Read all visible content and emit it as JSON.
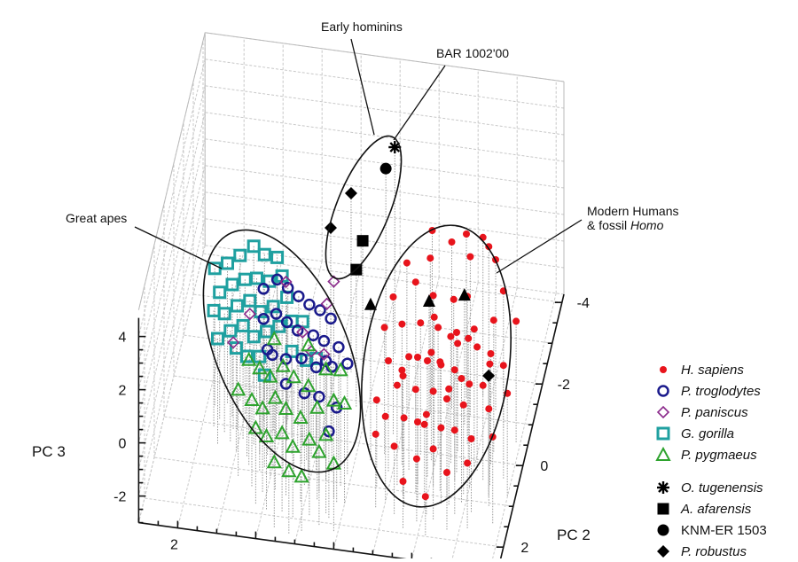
{
  "chart_data": {
    "type": "scatter",
    "projection": "3d",
    "axes": {
      "x": {
        "label": "",
        "range": [
          -6.2,
          3
        ],
        "ticks": [
          2
        ]
      },
      "y": {
        "label": "PC 2",
        "range": [
          -4.2,
          2.6
        ],
        "ticks": [
          -4,
          -2,
          0,
          2
        ]
      },
      "z": {
        "label": "PC 3",
        "range": [
          -3,
          5
        ],
        "ticks": [
          4,
          2,
          0,
          -2
        ]
      }
    },
    "grid": true,
    "legend_placement": "right",
    "drop_lines": true,
    "annotations": {
      "early_hominins": "Early hominins",
      "bar": "BAR 1002'00",
      "great_apes": "Great apes",
      "modern_humans_line1": "Modern Humans",
      "modern_humans_line2": "& fossil ",
      "modern_humans_italic": "Homo"
    },
    "series": [
      {
        "name": "H. sapiens",
        "marker": "filled-circle",
        "color": "#e8141c",
        "points": [
          [
            -4.1,
            -1.1,
            3.3
          ],
          [
            -3.5,
            -1.5,
            3.0
          ],
          [
            -4.6,
            -1.0,
            3.0
          ],
          [
            -3.0,
            -0.9,
            2.6
          ],
          [
            -5.2,
            -1.2,
            2.7
          ],
          [
            -2.8,
            -0.3,
            2.2
          ],
          [
            -3.3,
            -0.6,
            2.4
          ],
          [
            -3.8,
            -0.4,
            2.3
          ],
          [
            -4.3,
            -0.5,
            2.1
          ],
          [
            -5.5,
            -0.8,
            2.2
          ],
          [
            -5.9,
            -0.5,
            1.6
          ],
          [
            -2.7,
            0.2,
            1.8
          ],
          [
            -3.1,
            0.0,
            1.7
          ],
          [
            -3.6,
            0.1,
            2.0
          ],
          [
            -4.0,
            -0.1,
            1.6
          ],
          [
            -4.4,
            0.2,
            1.8
          ],
          [
            -4.8,
            0.0,
            1.5
          ],
          [
            -5.1,
            0.3,
            1.7
          ],
          [
            -5.4,
            0.1,
            1.2
          ],
          [
            -5.8,
            0.4,
            1.3
          ],
          [
            -2.9,
            0.6,
            1.2
          ],
          [
            -3.4,
            0.5,
            1.3
          ],
          [
            -3.9,
            0.6,
            1.4
          ],
          [
            -4.2,
            0.4,
            1.0
          ],
          [
            -4.6,
            0.6,
            1.2
          ],
          [
            -5.0,
            0.7,
            0.9
          ],
          [
            -5.3,
            0.5,
            0.6
          ],
          [
            -3.2,
            0.9,
            0.8
          ],
          [
            -3.7,
            1.0,
            0.9
          ],
          [
            -4.1,
            0.8,
            0.6
          ],
          [
            -4.5,
            1.0,
            0.7
          ],
          [
            -4.9,
            0.9,
            0.4
          ],
          [
            -5.6,
            1.1,
            0.7
          ],
          [
            -2.7,
            1.0,
            0.3
          ],
          [
            -3.0,
            1.3,
            0.2
          ],
          [
            -3.5,
            1.4,
            0.4
          ],
          [
            -4.0,
            1.3,
            0.1
          ],
          [
            -4.4,
            1.2,
            -0.1
          ],
          [
            -4.8,
            1.4,
            0.2
          ],
          [
            -5.2,
            1.3,
            -0.2
          ],
          [
            -3.3,
            1.6,
            -0.4
          ],
          [
            -3.9,
            1.7,
            -0.6
          ],
          [
            -4.3,
            1.6,
            -0.3
          ],
          [
            -4.7,
            1.8,
            -0.8
          ],
          [
            -3.6,
            1.9,
            -1.2
          ],
          [
            -4.2,
            2.0,
            -1.5
          ],
          [
            -4.6,
            1.2,
            1.4
          ],
          [
            -4.0,
            0.3,
            2.6
          ],
          [
            -4.7,
            -0.3,
            2.6
          ],
          [
            -3.6,
            -0.9,
            2.9
          ],
          [
            -5.0,
            -1.3,
            3.0
          ],
          [
            -4.4,
            -1.4,
            3.2
          ],
          [
            -4.8,
            -1.5,
            3.0
          ],
          [
            -3.7,
            0.8,
            1.8
          ],
          [
            -4.3,
            0.9,
            1.9
          ],
          [
            -5.0,
            0.2,
            2.2
          ],
          [
            -5.5,
            0.6,
            1.6
          ],
          [
            -6.0,
            0.8,
            0.9
          ],
          [
            -5.8,
            1.5,
            0.3
          ],
          [
            -5.2,
            1.7,
            -0.5
          ],
          [
            -3.9,
            0.2,
            1.1
          ],
          [
            -4.5,
            -0.1,
            1.1
          ],
          [
            -3.2,
            0.4,
            0.6
          ],
          [
            -2.8,
            1.5,
            -0.2
          ],
          [
            -4.9,
            1.1,
            1.7
          ],
          [
            -4.1,
            1.5,
            0.8
          ],
          [
            -3.4,
            1.1,
            1.5
          ],
          [
            -5.4,
            -0.2,
            2.0
          ],
          [
            -4.6,
            0.4,
            2.3
          ],
          [
            -3.8,
            1.2,
            0.0
          ]
        ]
      },
      {
        "name": "G. gorilla",
        "marker": "open-square",
        "color": "#1fa0a0",
        "points": [
          [
            1.8,
            -0.4,
            2.2
          ],
          [
            1.5,
            -0.5,
            2.3
          ],
          [
            1.2,
            -0.6,
            2.5
          ],
          [
            0.9,
            -0.8,
            2.6
          ],
          [
            0.6,
            -0.7,
            2.5
          ],
          [
            0.3,
            -0.8,
            2.3
          ],
          [
            1.6,
            -0.1,
            1.8
          ],
          [
            1.3,
            -0.2,
            2.0
          ],
          [
            1.0,
            -0.3,
            2.1
          ],
          [
            0.7,
            -0.3,
            2.2
          ],
          [
            0.4,
            -0.4,
            2.0
          ],
          [
            0.1,
            -0.5,
            2.1
          ],
          [
            1.4,
            0.2,
            1.5
          ],
          [
            1.1,
            0.1,
            1.7
          ],
          [
            0.8,
            0.0,
            1.8
          ],
          [
            0.5,
            0.1,
            1.6
          ],
          [
            0.2,
            0.0,
            1.7
          ],
          [
            -0.1,
            -0.2,
            1.8
          ],
          [
            1.2,
            0.4,
            1.2
          ],
          [
            0.9,
            0.3,
            1.3
          ],
          [
            0.6,
            0.4,
            1.1
          ],
          [
            0.3,
            0.3,
            1.2
          ],
          [
            0.0,
            0.2,
            1.3
          ],
          [
            -0.3,
            0.1,
            1.4
          ],
          [
            1.0,
            0.6,
            0.9
          ],
          [
            0.7,
            0.7,
            0.8
          ],
          [
            0.4,
            0.6,
            0.7
          ],
          [
            -0.4,
            0.5,
            0.9
          ],
          [
            -0.8,
            0.6,
            0.8
          ],
          [
            1.7,
            0.1,
            1.4
          ],
          [
            1.5,
            0.5,
            1.0
          ],
          [
            0.2,
            0.9,
            0.5
          ],
          [
            -0.6,
            0.2,
            1.6
          ],
          [
            -1.0,
            0.4,
            0.6
          ]
        ]
      },
      {
        "name": "P. troglodytes",
        "marker": "open-circle",
        "color": "#1a1a8c",
        "points": [
          [
            0.5,
            -0.2,
            2.0
          ],
          [
            0.2,
            -0.4,
            2.1
          ],
          [
            -0.1,
            -0.3,
            2.0
          ],
          [
            -0.4,
            -0.2,
            1.9
          ],
          [
            -0.7,
            -0.1,
            1.8
          ],
          [
            -1.0,
            0.0,
            1.8
          ],
          [
            -1.3,
            0.1,
            1.7
          ],
          [
            0.4,
            0.2,
            1.5
          ],
          [
            0.1,
            0.1,
            1.6
          ],
          [
            -0.2,
            0.2,
            1.5
          ],
          [
            -0.5,
            0.3,
            1.4
          ],
          [
            -0.9,
            0.3,
            1.3
          ],
          [
            -1.2,
            0.4,
            1.3
          ],
          [
            -1.6,
            0.5,
            1.3
          ],
          [
            0.2,
            0.6,
            1.0
          ],
          [
            -0.3,
            0.7,
            0.9
          ],
          [
            -0.7,
            0.7,
            1.0
          ],
          [
            -1.1,
            0.8,
            0.9
          ],
          [
            -1.5,
            0.8,
            1.0
          ],
          [
            -1.9,
            0.8,
            1.2
          ],
          [
            -0.4,
            1.1,
            0.6
          ],
          [
            -0.9,
            1.2,
            0.5
          ],
          [
            -1.3,
            1.3,
            0.6
          ],
          [
            -1.8,
            1.5,
            0.6
          ],
          [
            0.0,
            0.9,
            1.3
          ],
          [
            -1.4,
            1.0,
            1.5
          ],
          [
            -1.7,
            1.9,
            0.3
          ]
        ]
      },
      {
        "name": "P. paniscus",
        "marker": "open-diamond",
        "color": "#8b2a8b",
        "points": [
          [
            1.2,
            0.1,
            0.3
          ],
          [
            -1.2,
            -0.6,
            2.0
          ],
          [
            -1.2,
            0.4,
            0.8
          ],
          [
            -0.6,
            0.2,
            1.2
          ],
          [
            0.0,
            -0.5,
            1.9
          ],
          [
            -0.9,
            0.5,
            1.0
          ],
          [
            0.8,
            0.0,
            1.3
          ],
          [
            -1.1,
            -0.3,
            1.6
          ]
        ]
      },
      {
        "name": "P. pygmaeus",
        "marker": "open-triangle",
        "color": "#2ea32e",
        "points": [
          [
            0.8,
            1.2,
            0.3
          ],
          [
            0.6,
            0.9,
            1.0
          ],
          [
            0.3,
            1.0,
            0.9
          ],
          [
            0.0,
            1.1,
            0.8
          ],
          [
            -0.3,
            1.0,
            1.1
          ],
          [
            -0.6,
            1.1,
            0.9
          ],
          [
            -1.0,
            1.2,
            0.8
          ],
          [
            -1.4,
            1.0,
            1.2
          ],
          [
            0.4,
            1.4,
            0.3
          ],
          [
            0.1,
            1.5,
            0.2
          ],
          [
            -0.2,
            1.4,
            0.5
          ],
          [
            -0.5,
            1.5,
            0.3
          ],
          [
            -0.9,
            1.6,
            0.2
          ],
          [
            -1.3,
            1.5,
            0.5
          ],
          [
            -1.7,
            1.4,
            0.7
          ],
          [
            -2.0,
            1.5,
            0.8
          ],
          [
            0.2,
            1.8,
            -0.1
          ],
          [
            -0.1,
            1.9,
            -0.2
          ],
          [
            -0.5,
            1.9,
            0.0
          ],
          [
            -0.8,
            2.0,
            -0.3
          ],
          [
            -1.2,
            1.9,
            -0.1
          ],
          [
            -1.6,
            1.8,
            0.0
          ],
          [
            -0.4,
            2.3,
            -0.5
          ],
          [
            -0.8,
            2.4,
            -0.6
          ],
          [
            -1.1,
            2.3,
            -0.9
          ],
          [
            -1.5,
            2.1,
            -0.2
          ],
          [
            0.0,
            0.7,
            1.6
          ],
          [
            -0.9,
            0.8,
            1.7
          ],
          [
            -1.8,
            1.1,
            1.4
          ],
          [
            -1.9,
            2.2,
            -0.4
          ]
        ]
      },
      {
        "marker": "filled-triangle",
        "color": "#000000",
        "points": [
          [
            -2.39,
            0.38,
            2.87
          ],
          [
            -3.58,
            -0.86,
            1.33
          ],
          [
            -4.51,
            -0.76,
            1.9
          ]
        ]
      },
      {
        "name": "O. tugenensis",
        "marker": "asterisk",
        "color": "#000000",
        "points": [
          [
            -2.36,
            -2.22,
            4.8
          ]
        ]
      },
      {
        "name": "A. afarensis",
        "marker": "filled-square",
        "color": "#000000",
        "points": [
          [
            -1.72,
            -1.49,
            2.27
          ],
          [
            -1.72,
            -0.83,
            2.2
          ]
        ]
      },
      {
        "name": "KNM-ER 1503",
        "marker": "filled-circle-large",
        "color": "#000000",
        "points": [
          [
            -2.19,
            -1.98,
            4.33
          ]
        ]
      },
      {
        "name": "P. robustus",
        "marker": "filled-diamond",
        "color": "#000000",
        "points": [
          [
            -1.38,
            -1.66,
            3.73
          ],
          [
            -0.98,
            -1.17,
            3.1
          ],
          [
            -5.53,
            0.84,
            1.53
          ]
        ]
      }
    ],
    "legend": [
      {
        "label": "H. sapiens",
        "marker": "filled-circle",
        "color": "#e8141c",
        "italic": true
      },
      {
        "label": "P. troglodytes",
        "marker": "open-circle",
        "color": "#1a1a8c",
        "italic": true
      },
      {
        "label": "P. paniscus",
        "marker": "open-diamond",
        "color": "#8b2a8b",
        "italic": true
      },
      {
        "label": "G. gorilla",
        "marker": "open-square",
        "color": "#1fa0a0",
        "italic": true
      },
      {
        "label": "P. pygmaeus",
        "marker": "open-triangle",
        "color": "#2ea32e",
        "italic": true
      },
      {
        "label": "O. tugenensis",
        "marker": "asterisk",
        "color": "#000000",
        "italic": true
      },
      {
        "label": "A. afarensis",
        "marker": "filled-square",
        "color": "#000000",
        "italic": true
      },
      {
        "label": "KNM-ER 1503",
        "marker": "filled-circle-large",
        "color": "#000000",
        "italic": false
      },
      {
        "label": "P. robustus",
        "marker": "filled-diamond",
        "color": "#000000",
        "italic": true
      }
    ]
  }
}
